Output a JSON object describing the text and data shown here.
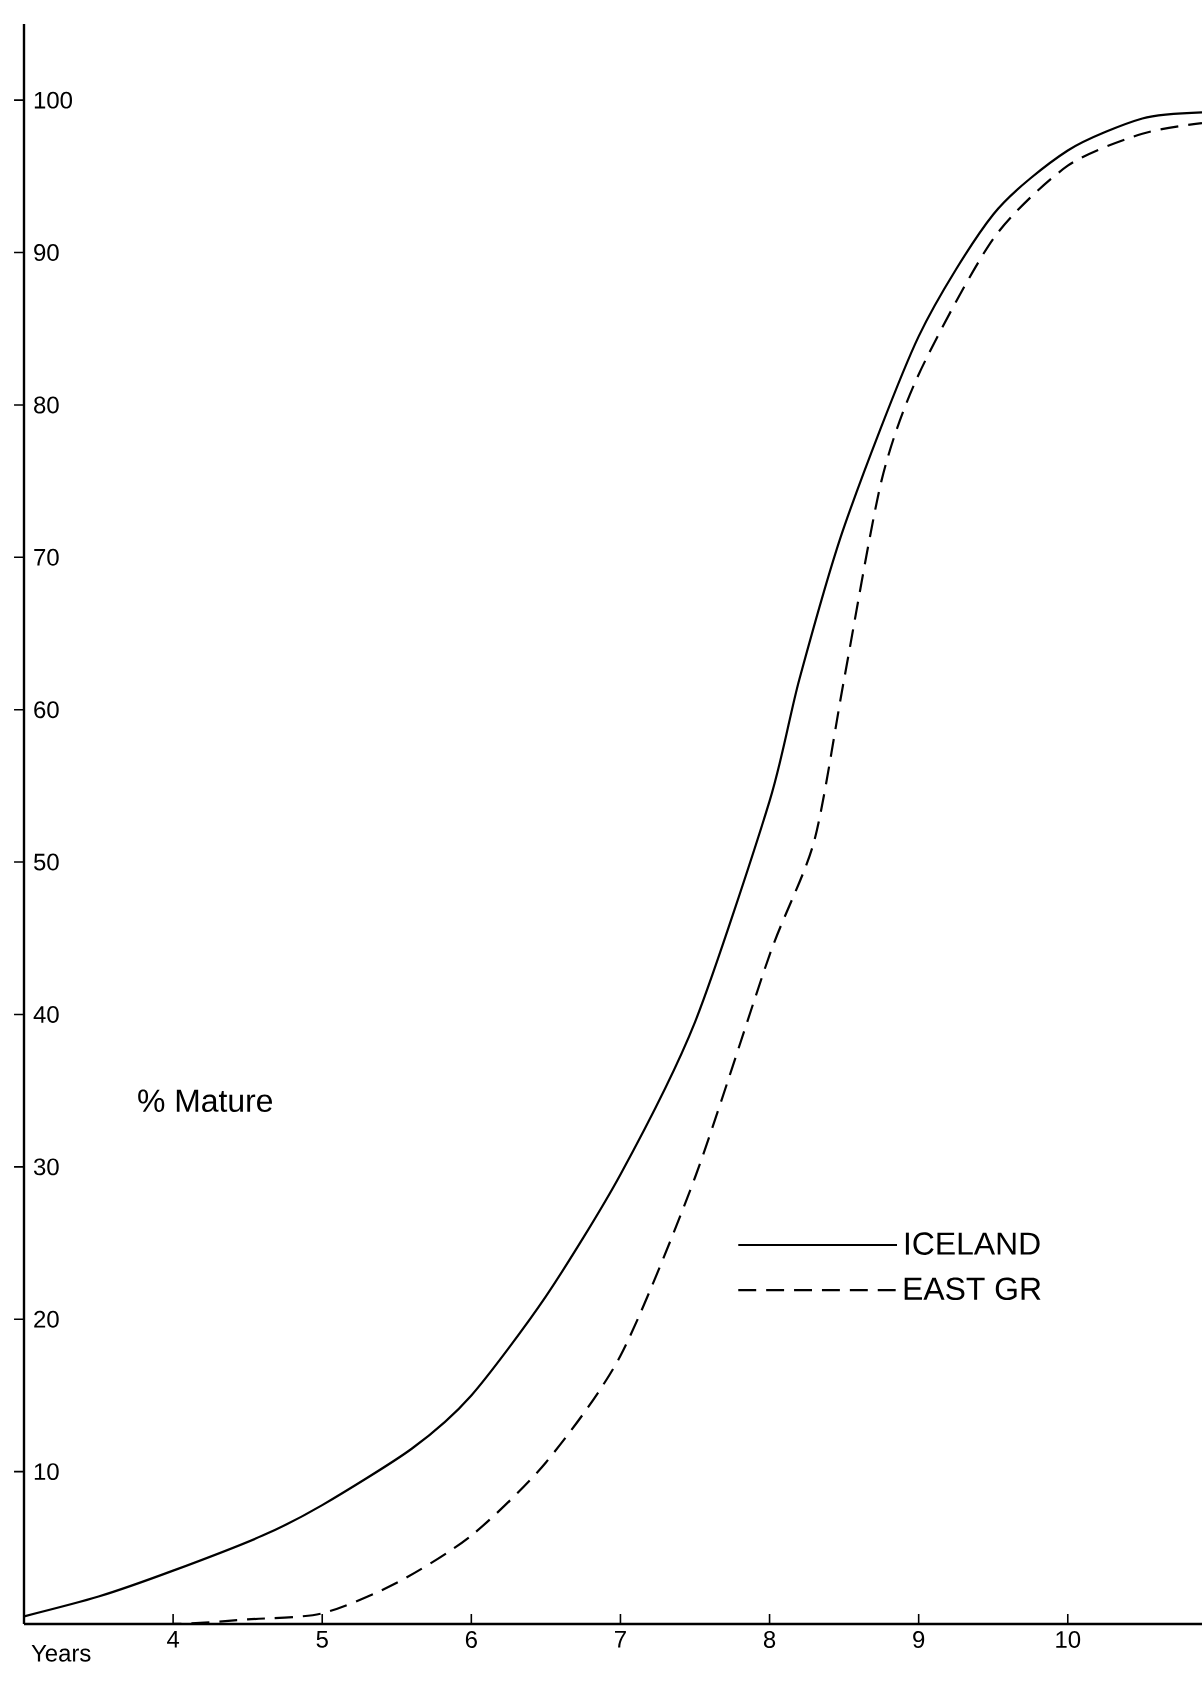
{
  "chart_data": {
    "type": "line",
    "xlabel": "Years",
    "ylabel": "% Mature",
    "xlim": [
      3,
      10.9
    ],
    "ylim": [
      0,
      105
    ],
    "xticks": [
      4,
      5,
      6,
      7,
      8,
      9,
      10
    ],
    "yticks": [
      10,
      20,
      30,
      40,
      50,
      60,
      70,
      80,
      90,
      100
    ],
    "legend": "right",
    "grid": false,
    "series": [
      {
        "name": "ICELAND",
        "color": "#000000",
        "line_style": "solid",
        "x": [
          3,
          3.5,
          4,
          4.6,
          5,
          5.6,
          6,
          6.5,
          7,
          7.5,
          8,
          8.2,
          8.5,
          9,
          9.5,
          10,
          10.5,
          10.9
        ],
        "values": [
          0.5,
          1.8,
          3.5,
          5.8,
          7.8,
          11.5,
          15,
          21.5,
          29.5,
          39.5,
          54,
          62,
          72,
          84.5,
          92.5,
          96.7,
          98.8,
          99.2
        ]
      },
      {
        "name": "EAST GR",
        "color": "#000000",
        "line_style": "dashed",
        "x": [
          3,
          4,
          4.5,
          5,
          5.5,
          6,
          6.5,
          7,
          7.5,
          8,
          8.3,
          8.5,
          8.75,
          9,
          9.5,
          10,
          10.5,
          10.9
        ],
        "values": [
          0,
          0,
          0.3,
          0.7,
          2.7,
          5.8,
          10.6,
          17.6,
          29.3,
          43.9,
          51.4,
          62,
          75,
          82,
          90.9,
          95.7,
          97.8,
          98.5
        ]
      }
    ]
  }
}
